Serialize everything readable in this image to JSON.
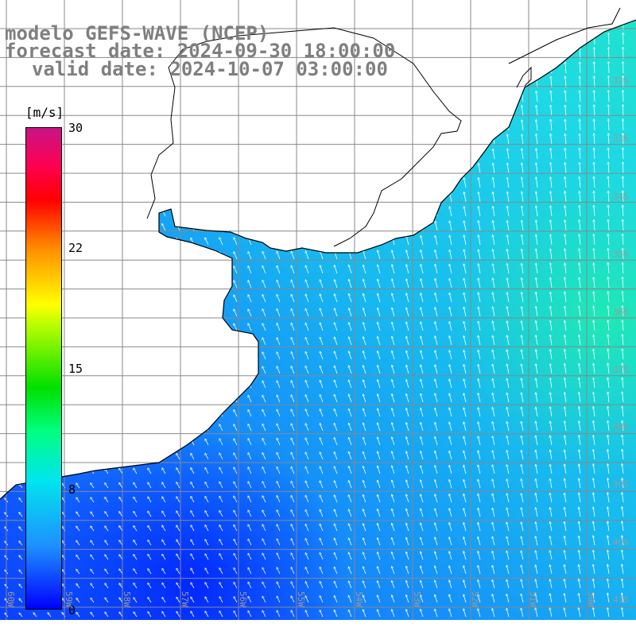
{
  "title": {
    "line1": "modelo GEFS-WAVE (NCEP)",
    "line2": "forecast date: 2024-09-30 18:00:00",
    "line3": "valid date: 2024-10-07 03:00:00"
  },
  "colorbar": {
    "unit": "[m/s]",
    "ticks": [
      "30",
      "22",
      "15",
      "8",
      "0"
    ],
    "tick_values": [
      30,
      22,
      15,
      8,
      0
    ],
    "range": [
      0,
      30
    ],
    "colors": [
      "#0000ff",
      "#1e90ff",
      "#00e5ee",
      "#00ff7f",
      "#00e000",
      "#ffff00",
      "#ff8c00",
      "#ff0000",
      "#c71585"
    ]
  },
  "lat_labels": [
    "32S",
    "33S",
    "34S",
    "35S",
    "36S",
    "37S",
    "38S",
    "39S",
    "40S",
    "41S"
  ],
  "lon_labels": [
    "60W",
    "59W",
    "58W",
    "57W",
    "56W",
    "55W",
    "54W",
    "53W",
    "52W",
    "51W",
    "50W"
  ],
  "map": {
    "land_color": "#ffffff",
    "coast_color": "#000000",
    "grid_color": "#888888",
    "arrow_color": "#ffffff",
    "wind_direction": "from south / southeast"
  }
}
